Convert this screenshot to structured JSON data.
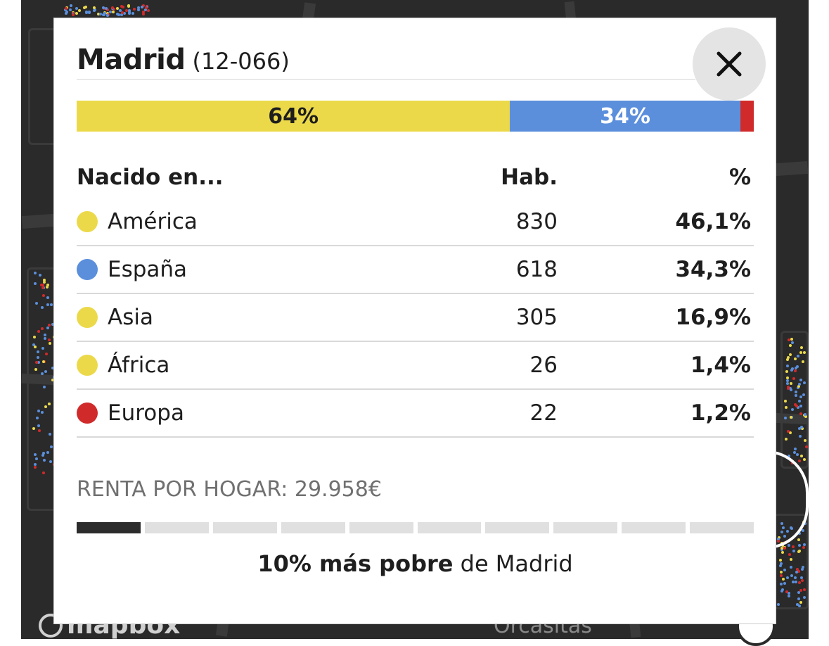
{
  "map": {
    "logo_text": "mapbox",
    "place_label": "Orcasitas"
  },
  "popup": {
    "title": "Madrid",
    "code": "(12-066)",
    "close_icon": "close-icon"
  },
  "bar": {
    "segments": [
      {
        "label": "64%",
        "percent": 64,
        "color": "#ebd94a"
      },
      {
        "label": "34%",
        "percent": 34,
        "color": "#5b8fdc"
      },
      {
        "label": "",
        "percent": 1.2,
        "color": "#d02a2a"
      }
    ]
  },
  "table": {
    "headers": {
      "name": "Nacido en...",
      "hab": "Hab.",
      "pct": "%"
    },
    "rows": [
      {
        "name": "América",
        "hab": "830",
        "pct": "46,1%",
        "color": "#ebd94a"
      },
      {
        "name": "España",
        "hab": "618",
        "pct": "34,3%",
        "color": "#5b8fdc"
      },
      {
        "name": "Asia",
        "hab": "305",
        "pct": "16,9%",
        "color": "#ebd94a"
      },
      {
        "name": "África",
        "hab": "26",
        "pct": "1,4%",
        "color": "#ebd94a"
      },
      {
        "name": "Europa",
        "hab": "22",
        "pct": "1,2%",
        "color": "#d02a2a"
      }
    ]
  },
  "income": {
    "label": "RENTA POR HOGAR: 29.958€",
    "scale_total": 10,
    "scale_active_index": 0,
    "decile_bold": "10% más pobre",
    "decile_rest": " de Madrid"
  }
}
